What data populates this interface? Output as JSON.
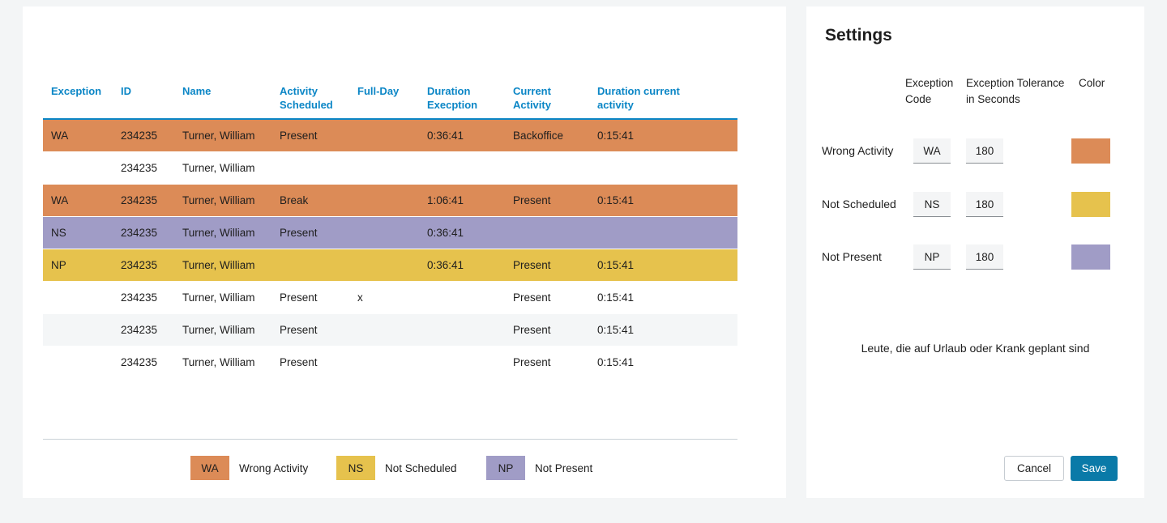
{
  "colors": {
    "wa": "#dc8b57",
    "ns": "#e6c24d",
    "np": "#a09cc6",
    "white": "#ffffff",
    "alt": "#f4f6f7",
    "accent": "#0b86c6",
    "save": "#0a7aa8",
    "page_bg": "#f3f5f6",
    "hr": "#c9d1d6",
    "input_bg": "#f4f5f6",
    "input_border": "#8a8f94",
    "cancel_border": "#c6ccd2"
  },
  "table": {
    "columns": {
      "exception": "Exception",
      "id": "ID",
      "name": "Name",
      "activity_scheduled": "Activity Scheduled",
      "full_day": "Full-Day",
      "duration_exception": "Duration Execption",
      "current_activity": "Current Activity",
      "duration_current_activity": "Duration current activity"
    },
    "rows": [
      {
        "ex": "WA",
        "id": "234235",
        "name": "Turner, William",
        "act": "Present",
        "fd": "",
        "dur_ex": "0:36:41",
        "cur": "Backoffice",
        "dur_cur": "0:15:41"
      },
      {
        "ex": "",
        "id": "234235",
        "name": "Turner, William",
        "act": "",
        "fd": "",
        "dur_ex": "",
        "cur": "",
        "dur_cur": ""
      },
      {
        "ex": "WA",
        "id": "234235",
        "name": "Turner, William",
        "act": "Break",
        "fd": "",
        "dur_ex": "1:06:41",
        "cur": "Present",
        "dur_cur": "0:15:41"
      },
      {
        "ex": "NS",
        "id": "234235",
        "name": "Turner, William",
        "act": "Present",
        "fd": "",
        "dur_ex": "0:36:41",
        "cur": "",
        "dur_cur": ""
      },
      {
        "ex": "NP",
        "id": "234235",
        "name": "Turner, William",
        "act": "",
        "fd": "",
        "dur_ex": "0:36:41",
        "cur": "Present",
        "dur_cur": "0:15:41"
      },
      {
        "ex": "",
        "id": "234235",
        "name": "Turner, William",
        "act": "Present",
        "fd": "x",
        "dur_ex": "",
        "cur": "Present",
        "dur_cur": "0:15:41"
      },
      {
        "ex": "",
        "id": "234235",
        "name": "Turner, William",
        "act": "Present",
        "fd": "",
        "dur_ex": "",
        "cur": "Present",
        "dur_cur": "0:15:41"
      },
      {
        "ex": "",
        "id": "234235",
        "name": "Turner, William",
        "act": "Present",
        "fd": "",
        "dur_ex": "",
        "cur": "Present",
        "dur_cur": "0:15:41"
      }
    ]
  },
  "legend": [
    {
      "code": "WA",
      "label": "Wrong Activity"
    },
    {
      "code": "NS",
      "label": "Not Scheduled"
    },
    {
      "code": "NP",
      "label": "Not Present"
    }
  ],
  "settings": {
    "title": "Settings",
    "headers": {
      "code": "Exception Code",
      "tolerance": "Exception Tolerance in Seconds",
      "color": "Color"
    },
    "rows": [
      {
        "label": "Wrong Activity",
        "code": "WA",
        "tolerance": "180"
      },
      {
        "label": "Not Scheduled",
        "code": "NS",
        "tolerance": "180"
      },
      {
        "label": "Not Present",
        "code": "NP",
        "tolerance": "180"
      }
    ],
    "note": "Leute, die auf Urlaub oder Krank geplant sind",
    "cancel_label": "Cancel",
    "save_label": "Save"
  }
}
